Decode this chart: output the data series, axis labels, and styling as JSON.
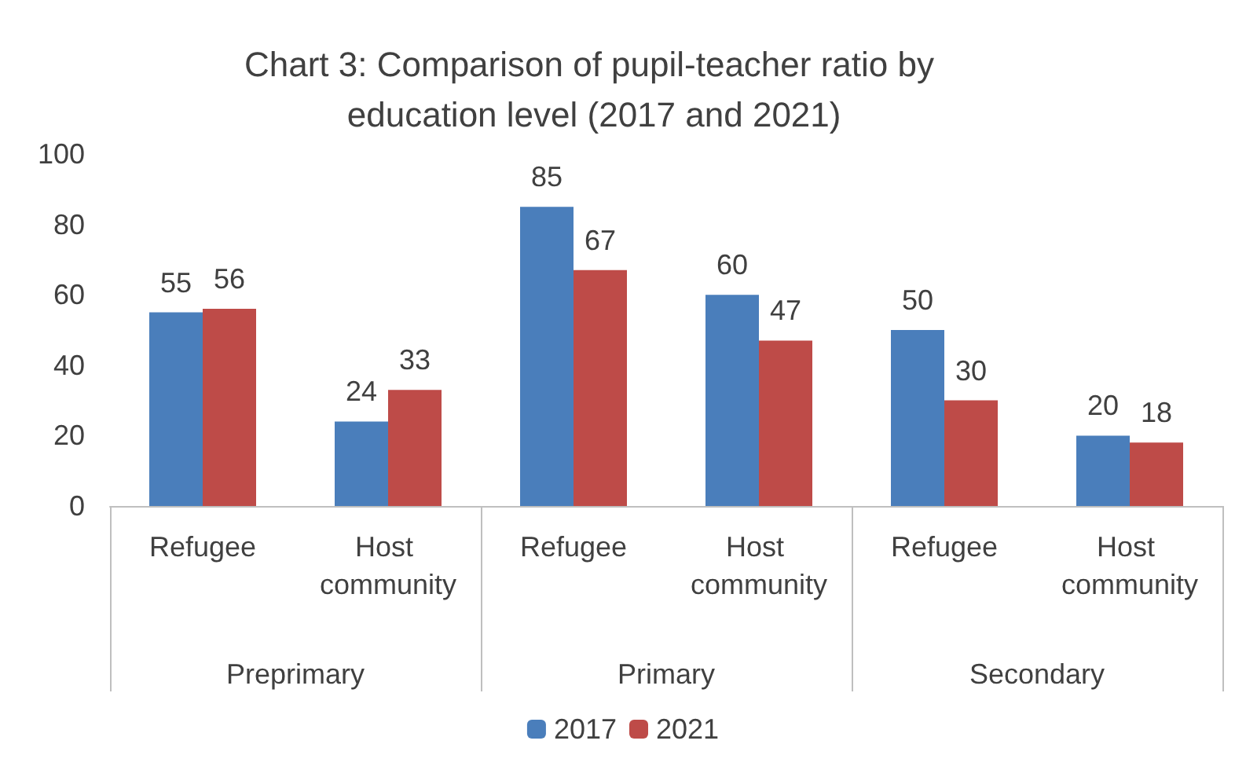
{
  "chart_data": {
    "type": "bar",
    "title": "Chart 3: Comparison of pupil-teacher ratio by education level (2017 and 2021)",
    "categories": [
      "Refugee",
      "Host community",
      "Refugee",
      "Host community",
      "Refugee",
      "Host community"
    ],
    "annotations": [
      "Preprimary",
      "Primary",
      "Secondary"
    ],
    "series": [
      {
        "name": "2017",
        "color": "#4a7ebb",
        "values": [
          55,
          24,
          85,
          60,
          50,
          20
        ]
      },
      {
        "name": "2021",
        "color": "#be4b48",
        "values": [
          56,
          33,
          67,
          47,
          30,
          18
        ]
      }
    ],
    "ylim": [
      0,
      100
    ],
    "yticks": [
      0,
      20,
      40,
      60,
      80,
      100
    ],
    "grid": false,
    "legend": "bottom",
    "data_labels": true
  }
}
